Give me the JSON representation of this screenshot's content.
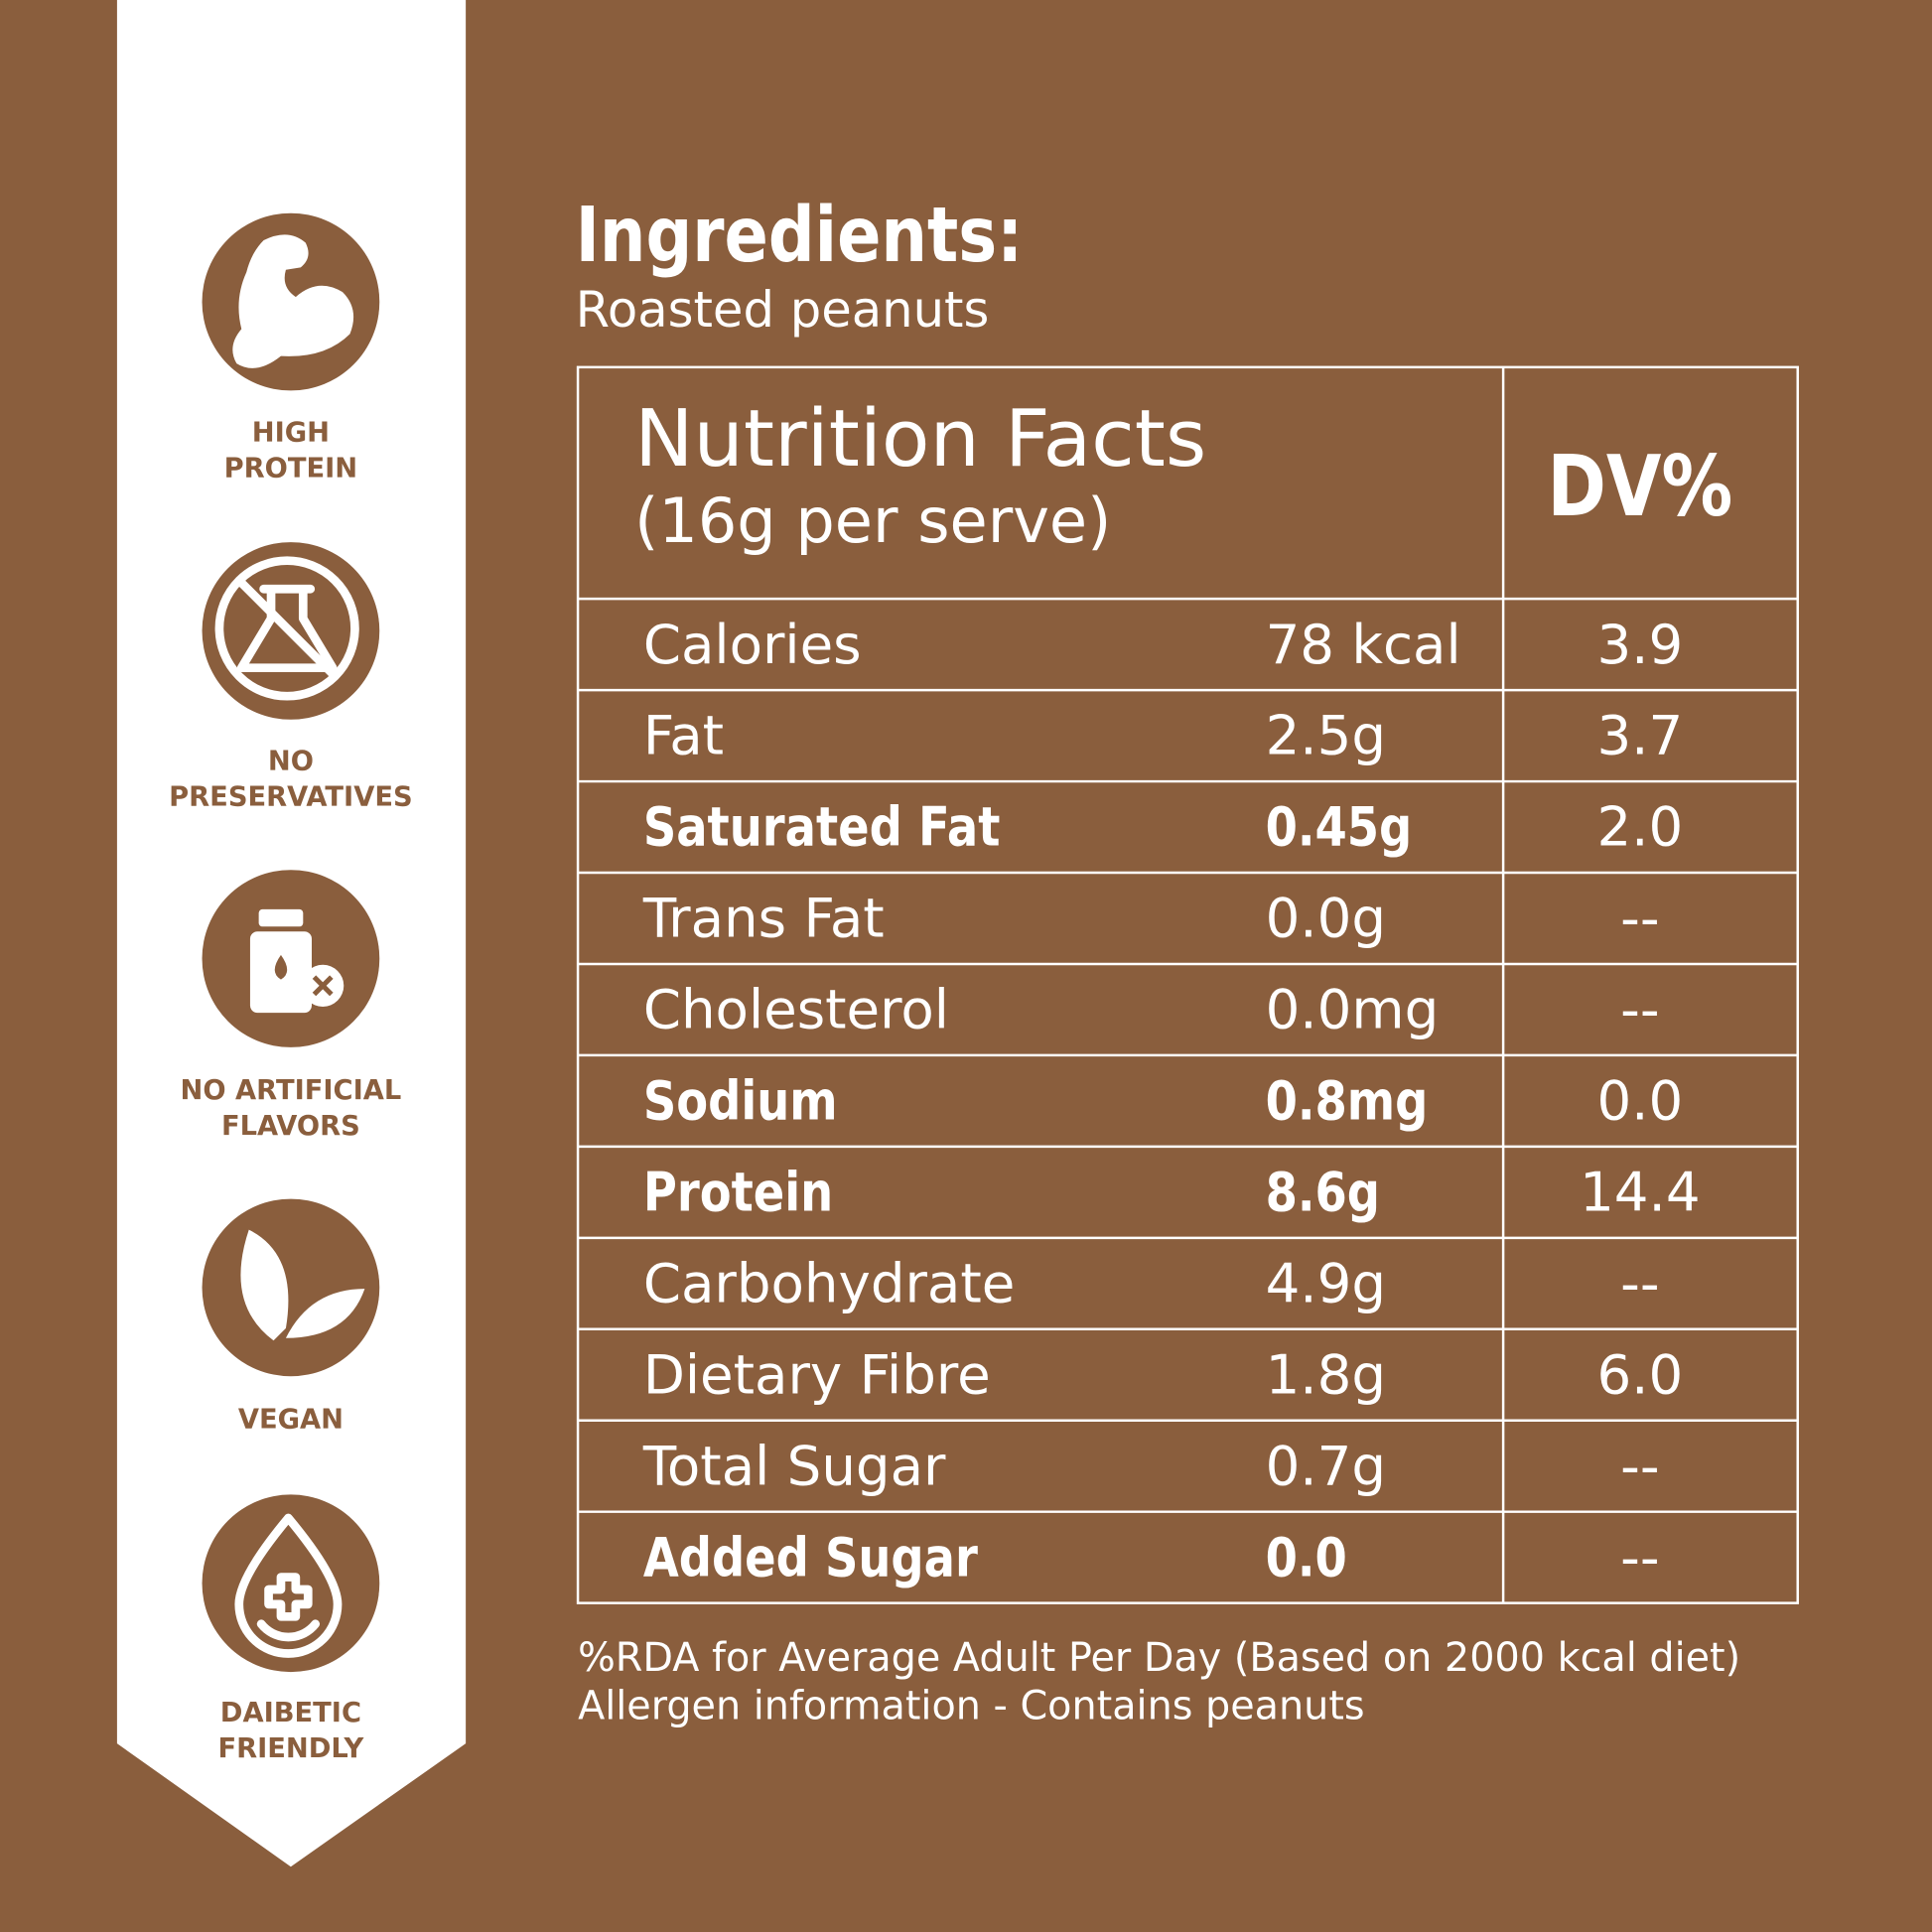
{
  "sidebar": {
    "badges": [
      {
        "lines": [
          "HIGH",
          "PROTEIN"
        ]
      },
      {
        "lines": [
          "NO",
          "PRESERVATIVES"
        ]
      },
      {
        "lines": [
          "NO ARTIFICIAL",
          "FLAVORS"
        ]
      },
      {
        "lines": [
          "VEGAN"
        ]
      },
      {
        "lines": [
          "DAIBETIC",
          "FRIENDLY"
        ]
      }
    ]
  },
  "ingredients": {
    "title": "Ingredients:",
    "text": "Roasted peanuts"
  },
  "table": {
    "title": "Nutrition Facts",
    "subtitle": "(16g per serve)",
    "dv_header": "DV%",
    "rows": [
      {
        "name": "Calories",
        "amount": "78 kcal",
        "dv": "3.9",
        "bold": false
      },
      {
        "name": "Fat",
        "amount": "2.5g",
        "dv": "3.7",
        "bold": false
      },
      {
        "name": "Saturated Fat",
        "amount": "0.45g",
        "dv": "2.0",
        "bold": true
      },
      {
        "name": "Trans Fat",
        "amount": "0.0g",
        "dv": "--",
        "bold": false
      },
      {
        "name": "Cholesterol",
        "amount": "0.0mg",
        "dv": "--",
        "bold": false
      },
      {
        "name": "Sodium",
        "amount": "0.8mg",
        "dv": "0.0",
        "bold": true
      },
      {
        "name": "Protein",
        "amount": "8.6g",
        "dv": "14.4",
        "bold": true
      },
      {
        "name": "Carbohydrate",
        "amount": "4.9g",
        "dv": "--",
        "bold": false
      },
      {
        "name": "Dietary Fibre",
        "amount": "1.8g",
        "dv": "6.0",
        "bold": false
      },
      {
        "name": "Total Sugar",
        "amount": "0.7g",
        "dv": "--",
        "bold": false
      },
      {
        "name": "Added Sugar",
        "amount": "0.0",
        "dv": "--",
        "bold": true
      }
    ]
  },
  "notes": [
    "%RDA for Average Adult Per Day (Based on 2000 kcal diet)",
    "Allergen information - Contains peanuts"
  ]
}
